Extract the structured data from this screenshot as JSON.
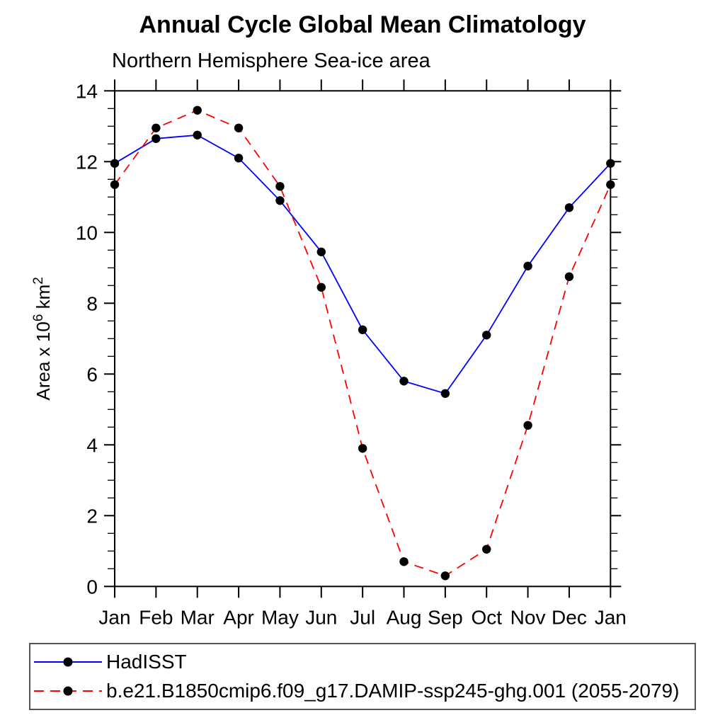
{
  "chart_data": {
    "type": "line",
    "title": "Annual Cycle Global Mean Climatology",
    "subtitle": "Northern Hemisphere Sea-ice area",
    "ylabel": "Area x 10⁶ km²",
    "ylabel_parts": [
      {
        "t": "Area x 10",
        "sup": false
      },
      {
        "t": "6",
        "sup": true
      },
      {
        "t": " km",
        "sup": false
      },
      {
        "t": "2",
        "sup": true
      }
    ],
    "categories": [
      "Jan",
      "Feb",
      "Mar",
      "Apr",
      "May",
      "Jun",
      "Jul",
      "Aug",
      "Sep",
      "Oct",
      "Nov",
      "Dec",
      "Jan"
    ],
    "ylim": [
      0,
      14
    ],
    "y_ticks": [
      0,
      2,
      4,
      6,
      8,
      10,
      12,
      14
    ],
    "y_minor_step": 0.5,
    "grid": false,
    "legend_position": "bottom",
    "series": [
      {
        "name": "HadISST",
        "color": "#0000ff",
        "style": "solid",
        "marker": "circle",
        "marker_color": "#000000",
        "values": [
          11.95,
          12.65,
          12.75,
          12.1,
          10.9,
          9.45,
          7.25,
          5.8,
          5.45,
          7.1,
          9.05,
          10.7,
          11.95
        ]
      },
      {
        "name": "b.e21.B1850cmip6.f09_g17.DAMIP-ssp245-ghg.001 (2055-2079)",
        "color": "#ff0000",
        "style": "dashed",
        "marker": "circle",
        "marker_color": "#000000",
        "values": [
          11.35,
          12.95,
          13.45,
          12.95,
          11.3,
          8.45,
          3.9,
          0.7,
          0.3,
          1.05,
          4.55,
          8.75,
          11.35
        ]
      }
    ]
  },
  "colors": {
    "axis": "#000000",
    "text": "#000000",
    "background": "#ffffff",
    "legend_border": "#555555"
  }
}
